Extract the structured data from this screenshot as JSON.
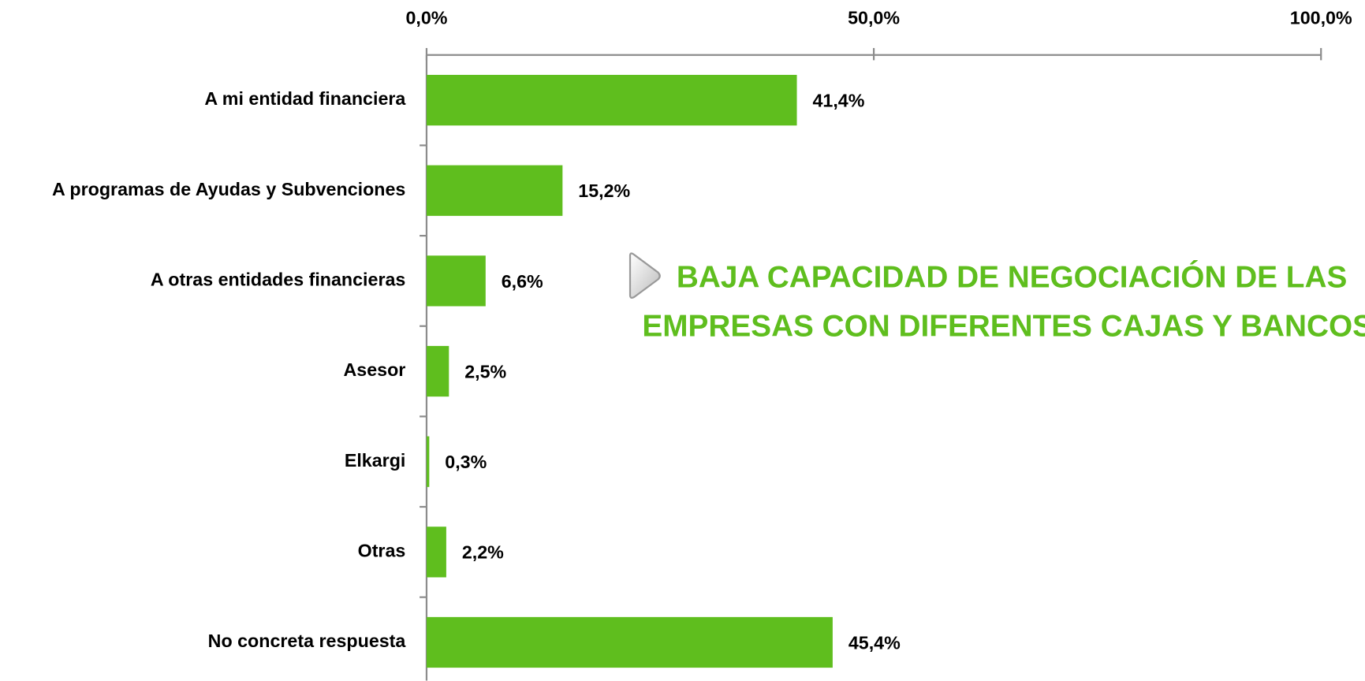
{
  "chart_data": {
    "type": "bar",
    "orientation": "horizontal",
    "categories": [
      "A mi entidad financiera",
      "A programas de Ayudas y Subvenciones",
      "A otras entidades financieras",
      "Asesor",
      "Elkargi",
      "Otras",
      "No concreta respuesta"
    ],
    "values": [
      41.4,
      15.2,
      6.6,
      2.5,
      0.3,
      2.2,
      45.4
    ],
    "value_labels": [
      "41,4%",
      "15,2%",
      "6,6%",
      "2,5%",
      "0,3%",
      "2,2%",
      "45,4%"
    ],
    "color": "#5fbe1e",
    "xlim": [
      0,
      100
    ],
    "xticks": [
      {
        "value": 0,
        "label": "0,0%"
      },
      {
        "value": 50,
        "label": "50,0%"
      },
      {
        "value": 100,
        "label": "100,0%"
      }
    ],
    "annotations": [
      "BAJA CAPACIDAD DE NEGOCIACIÓN DE LAS",
      "EMPRESAS CON DIFERENTES CAJAS Y BANCOS."
    ]
  }
}
